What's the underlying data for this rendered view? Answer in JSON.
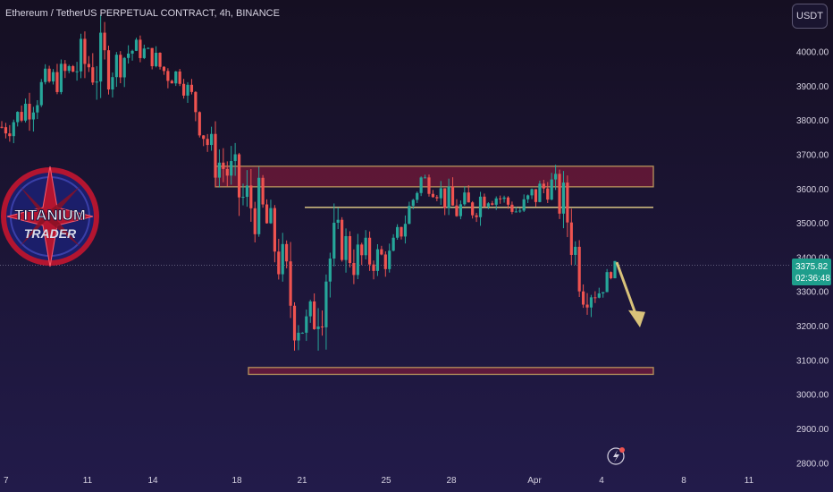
{
  "header": {
    "symbol": "Ethereum / TetherUS PERPETUAL CONTRACT",
    "timeframe": "4h",
    "exchange": "BINANCE"
  },
  "currency_button": "USDT",
  "logo": {
    "line1": "TITANIUM",
    "line2": "TRADER"
  },
  "price_tag": {
    "price": "3375.82",
    "countdown": "02:36:48"
  },
  "colors": {
    "bg_top": "#150f22",
    "bg_bottom": "#221b4a",
    "up": "#26a69a",
    "down": "#ef5350",
    "zone_fill": "#8b1a3a",
    "zone_stroke": "#b8935c",
    "resistance_line": "#e8d28a",
    "arrow": "#d9c27a",
    "axis_text": "#d7d3e2"
  },
  "chart_data": {
    "type": "candlestick",
    "ylim": [
      2780,
      4150
    ],
    "y_ticks": [
      "4000.00",
      "3900.00",
      "3800.00",
      "3700.00",
      "3600.00",
      "3500.00",
      "3400.00",
      "3300.00",
      "3200.00",
      "3100.00",
      "3000.00",
      "2900.00",
      "2800.00"
    ],
    "x_ticks": [
      "7",
      "11",
      "14",
      "18",
      "21",
      "25",
      "28",
      "Apr",
      "4",
      "8",
      "11"
    ],
    "current_price": 3375.82,
    "zones": [
      {
        "y_low": 3605,
        "y_high": 3665
      },
      {
        "y_low": 3058,
        "y_high": 3078
      }
    ],
    "resistance": 3545,
    "anchors": [
      [
        3720,
        3840
      ],
      [
        3760,
        3860
      ],
      [
        3800,
        3950
      ],
      [
        3860,
        3960
      ],
      [
        3880,
        3990
      ],
      [
        3870,
        4060
      ],
      [
        3840,
        4080
      ],
      [
        3900,
        4020
      ],
      [
        3950,
        4060
      ],
      [
        3980,
        4020
      ],
      [
        3880,
        4010
      ],
      [
        3900,
        3960
      ],
      [
        3780,
        3900
      ],
      [
        3620,
        3780
      ],
      [
        3560,
        3740
      ],
      [
        3440,
        3680
      ],
      [
        3450,
        3640
      ],
      [
        3330,
        3520
      ],
      [
        3130,
        3390
      ],
      [
        3100,
        3260
      ],
      [
        3180,
        3560
      ],
      [
        3380,
        3520
      ],
      [
        3300,
        3480
      ],
      [
        3340,
        3460
      ],
      [
        3350,
        3440
      ],
      [
        3460,
        3560
      ],
      [
        3600,
        3660
      ],
      [
        3560,
        3640
      ],
      [
        3480,
        3600
      ],
      [
        3480,
        3600
      ],
      [
        3540,
        3640
      ],
      [
        3540,
        3600
      ],
      [
        3500,
        3560
      ],
      [
        3520,
        3640
      ],
      [
        3570,
        3660
      ],
      [
        3420,
        3640
      ],
      [
        3240,
        3400
      ],
      [
        3260,
        3340
      ],
      [
        3360,
        3390
      ]
    ]
  }
}
